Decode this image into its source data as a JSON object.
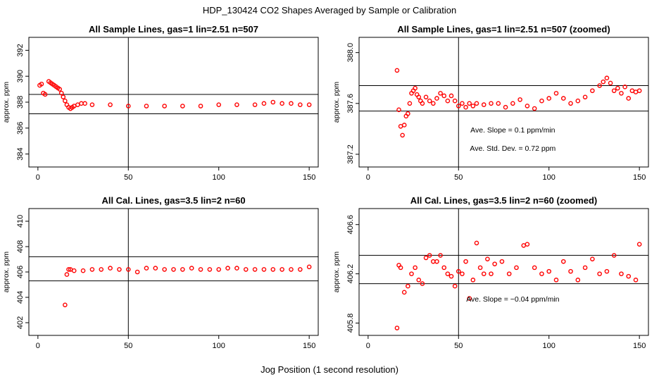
{
  "figure": {
    "title": "HDP_130424  CO2 Shapes Averaged by Sample or Calibration",
    "xlabel": "Jog Position (1 second resolution)"
  },
  "colors": {
    "points": "#ff0000",
    "lines": "#000000",
    "background": "#ffffff"
  },
  "chart_data": [
    {
      "type": "scatter",
      "title": "All Sample Lines, gas=1 lin=2.51 n=507",
      "xlabel": "",
      "ylabel": "approx. ppm",
      "xlim": [
        -5,
        155
      ],
      "ylim": [
        383.0,
        393.0
      ],
      "xticks": [
        0,
        50,
        100,
        150
      ],
      "yticks": [
        384,
        386,
        388,
        390,
        392
      ],
      "vline": 50,
      "hlines": [
        388.6,
        387.1
      ],
      "annotations": [],
      "series": [
        {
          "name": "sample mean",
          "x": [
            1,
            2,
            3,
            4,
            6,
            7,
            8,
            9,
            10,
            11,
            12,
            13,
            14,
            15,
            16,
            17,
            18,
            19,
            20,
            22,
            24,
            26,
            30,
            40,
            50,
            60,
            70,
            80,
            90,
            100,
            110,
            120,
            125,
            130,
            135,
            140,
            145,
            150
          ],
          "y": [
            389.3,
            389.4,
            388.7,
            388.6,
            389.6,
            389.5,
            389.4,
            389.3,
            389.2,
            389.1,
            389.0,
            388.7,
            388.4,
            388.1,
            387.8,
            387.6,
            387.5,
            387.6,
            387.7,
            387.8,
            387.9,
            387.9,
            387.8,
            387.8,
            387.7,
            387.7,
            387.7,
            387.7,
            387.7,
            387.8,
            387.8,
            387.8,
            387.9,
            388.0,
            387.9,
            387.9,
            387.8,
            387.8
          ]
        }
      ]
    },
    {
      "type": "scatter",
      "title": "All Sample Lines, gas=1 lin=2.51 n=507 (zoomed)",
      "xlabel": "",
      "ylabel": "approx. ppm",
      "xlim": [
        -5,
        155
      ],
      "ylim": [
        387.1,
        388.12
      ],
      "xticks": [
        0,
        50,
        100,
        150
      ],
      "yticks": [
        387.2,
        387.6,
        388.0
      ],
      "yticklabels": [
        "387.2",
        "387.6",
        "388.0"
      ],
      "vline": 50,
      "hlines": [
        387.74,
        387.54
      ],
      "annotations": [
        "Ave. Slope =  0.1  ppm/min",
        "Ave. Std. Dev. =  0.72  ppm"
      ],
      "series": [
        {
          "name": "sample mean (zoomed)",
          "x": [
            16,
            17,
            18,
            19,
            20,
            21,
            22,
            23,
            24,
            25,
            26,
            27,
            28,
            29,
            30,
            32,
            34,
            36,
            38,
            40,
            42,
            44,
            46,
            48,
            50,
            52,
            54,
            56,
            58,
            60,
            64,
            68,
            72,
            76,
            80,
            84,
            88,
            92,
            96,
            100,
            104,
            108,
            112,
            116,
            120,
            124,
            128,
            130,
            132,
            134,
            136,
            138,
            140,
            142,
            144,
            146,
            148,
            150
          ],
          "y": [
            387.86,
            387.55,
            387.42,
            387.35,
            387.43,
            387.5,
            387.52,
            387.6,
            387.68,
            387.7,
            387.72,
            387.67,
            387.65,
            387.62,
            387.6,
            387.65,
            387.62,
            387.6,
            387.64,
            387.68,
            387.66,
            387.62,
            387.66,
            387.62,
            387.58,
            387.6,
            387.57,
            387.6,
            387.58,
            387.6,
            387.59,
            387.6,
            387.6,
            387.57,
            387.6,
            387.63,
            387.58,
            387.56,
            387.62,
            387.64,
            387.68,
            387.64,
            387.6,
            387.62,
            387.65,
            387.7,
            387.74,
            387.77,
            387.8,
            387.76,
            387.7,
            387.72,
            387.68,
            387.73,
            387.64,
            387.7,
            387.69,
            387.7
          ]
        }
      ]
    },
    {
      "type": "scatter",
      "title": "All Cal. Lines, gas=3.5 lin=2 n=60",
      "xlabel": "",
      "ylabel": "approx. ppm",
      "xlim": [
        -5,
        155
      ],
      "ylim": [
        401.0,
        411.0
      ],
      "xticks": [
        0,
        50,
        100,
        150
      ],
      "yticks": [
        402,
        404,
        406,
        408,
        410
      ],
      "vline": 50,
      "hlines": [
        407.2,
        405.3
      ],
      "annotations": [],
      "series": [
        {
          "name": "cal mean",
          "x": [
            15,
            16,
            17,
            18,
            20,
            25,
            30,
            35,
            40,
            45,
            50,
            55,
            60,
            65,
            70,
            75,
            80,
            85,
            90,
            95,
            100,
            105,
            110,
            115,
            120,
            125,
            130,
            135,
            140,
            145,
            150
          ],
          "y": [
            403.4,
            405.8,
            406.2,
            406.2,
            406.1,
            406.1,
            406.2,
            406.2,
            406.3,
            406.2,
            406.2,
            406.0,
            406.3,
            406.3,
            406.2,
            406.2,
            406.2,
            406.3,
            406.2,
            406.2,
            406.2,
            406.3,
            406.3,
            406.2,
            406.2,
            406.2,
            406.2,
            406.2,
            406.2,
            406.2,
            406.4
          ]
        }
      ]
    },
    {
      "type": "scatter",
      "title": "All Cal. Lines, gas=3.5 lin=2 n=60 (zoomed)",
      "xlabel": "",
      "ylabel": "approx. ppm",
      "xlim": [
        -5,
        155
      ],
      "ylim": [
        405.7,
        406.73
      ],
      "xticks": [
        0,
        50,
        100,
        150
      ],
      "yticks": [
        405.8,
        406.2,
        406.6
      ],
      "yticklabels": [
        "405.8",
        "406.2",
        "406.6"
      ],
      "vline": 50,
      "hlines": [
        406.35,
        406.12
      ],
      "annotations": [
        "Ave. Slope =  −0.04  ppm/min"
      ],
      "series": [
        {
          "name": "cal mean (zoomed)",
          "x": [
            16,
            17,
            18,
            20,
            22,
            24,
            26,
            28,
            30,
            32,
            34,
            36,
            38,
            40,
            42,
            44,
            46,
            48,
            50,
            52,
            54,
            56,
            58,
            60,
            62,
            64,
            66,
            68,
            70,
            74,
            78,
            82,
            86,
            88,
            92,
            96,
            100,
            104,
            108,
            112,
            116,
            120,
            124,
            128,
            132,
            136,
            140,
            144,
            148,
            150
          ],
          "y": [
            405.76,
            406.27,
            406.25,
            406.05,
            406.1,
            406.2,
            406.25,
            406.15,
            406.12,
            406.33,
            406.35,
            406.3,
            406.3,
            406.35,
            406.25,
            406.2,
            406.18,
            406.1,
            406.22,
            406.2,
            406.3,
            406.0,
            406.15,
            406.45,
            406.25,
            406.2,
            406.32,
            406.2,
            406.28,
            406.3,
            406.2,
            406.25,
            406.43,
            406.44,
            406.25,
            406.2,
            406.22,
            406.15,
            406.3,
            406.22,
            406.15,
            406.25,
            406.32,
            406.2,
            406.22,
            406.35,
            406.2,
            406.18,
            406.15,
            406.44
          ]
        }
      ]
    }
  ]
}
